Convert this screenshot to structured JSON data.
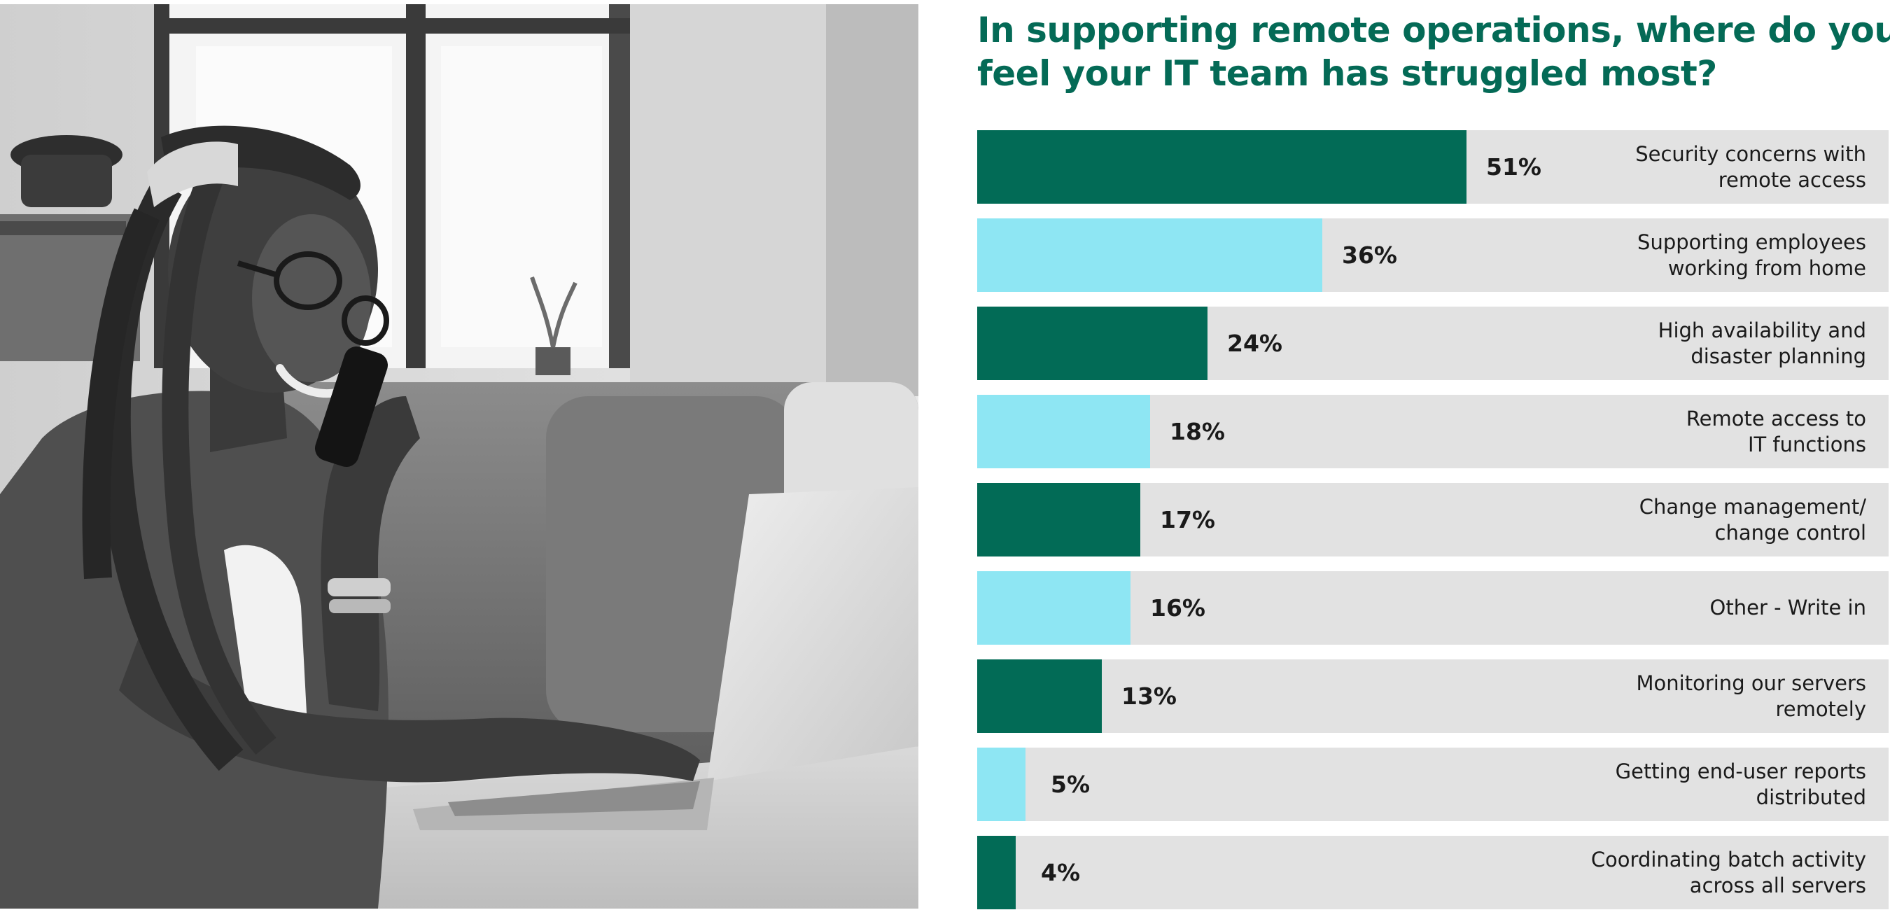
{
  "chart_data": {
    "type": "bar",
    "orientation": "horizontal",
    "title_lines": [
      "In supporting remote operations, where do you",
      "feel your IT team has struggled most?"
    ],
    "xlim": [
      0,
      100
    ],
    "value_suffix": "%",
    "colors": {
      "dark": "#026b56",
      "light": "#8ee6f3",
      "track": "#e2e2e2",
      "title": "#046a56"
    },
    "categories": [
      {
        "lines": [
          "Security concerns with",
          "remote access"
        ],
        "value": 51,
        "label": "51%",
        "color": "dark"
      },
      {
        "lines": [
          "Supporting employees",
          "working from home"
        ],
        "value": 36,
        "label": "36%",
        "color": "light"
      },
      {
        "lines": [
          "High availability and",
          "disaster planning"
        ],
        "value": 24,
        "label": "24%",
        "color": "dark"
      },
      {
        "lines": [
          "Remote access to",
          "IT functions"
        ],
        "value": 18,
        "label": "18%",
        "color": "light"
      },
      {
        "lines": [
          "Change management/",
          "change control"
        ],
        "value": 17,
        "label": "17%",
        "color": "dark"
      },
      {
        "lines": [
          "Other - Write in"
        ],
        "value": 16,
        "label": "16%",
        "color": "light"
      },
      {
        "lines": [
          "Monitoring our servers",
          "remotely"
        ],
        "value": 13,
        "label": "13%",
        "color": "dark"
      },
      {
        "lines": [
          "Getting end-user reports",
          "distributed"
        ],
        "value": 5,
        "label": "5%",
        "color": "light"
      },
      {
        "lines": [
          "Coordinating batch activity",
          "across all servers"
        ],
        "value": 4,
        "label": "4%",
        "color": "dark"
      }
    ]
  },
  "photo": {
    "icon": "photo-woman-on-phone-with-laptop"
  }
}
